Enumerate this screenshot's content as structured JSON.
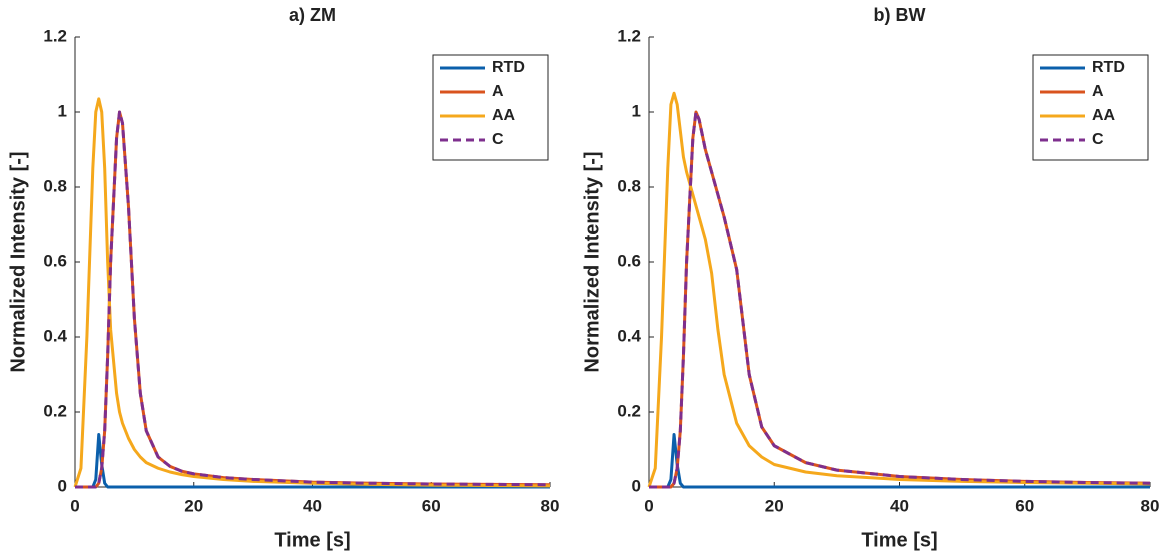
{
  "chart_data": [
    {
      "type": "line",
      "title": "a) ZM",
      "x_label": "Time [s]",
      "y_label": "Normalized Intensity [-]",
      "x": [
        0,
        1,
        2,
        3,
        3.5,
        4,
        4.5,
        5,
        5.5,
        6,
        7,
        7.5,
        8,
        9,
        10,
        11,
        12,
        14,
        16,
        18,
        20,
        25,
        30,
        40,
        50,
        60,
        70,
        80
      ],
      "series": [
        {
          "name": "RTD",
          "color": "#0b5fab",
          "line_style": "solid",
          "values": [
            0,
            0,
            0,
            0,
            0.02,
            0.14,
            0.06,
            0.01,
            0,
            0,
            0,
            0,
            0,
            0,
            0,
            0,
            0,
            0,
            0,
            0,
            0,
            0,
            0,
            0,
            0,
            0,
            0,
            0
          ]
        },
        {
          "name": "A",
          "color": "#d9531e",
          "line_style": "solid",
          "values": [
            0,
            0,
            0,
            0,
            0,
            0.01,
            0.05,
            0.15,
            0.35,
            0.6,
            0.93,
            1.0,
            0.97,
            0.75,
            0.45,
            0.25,
            0.15,
            0.08,
            0.055,
            0.042,
            0.035,
            0.025,
            0.02,
            0.013,
            0.01,
            0.008,
            0.007,
            0.006
          ]
        },
        {
          "name": "AA",
          "color": "#f5a81c",
          "line_style": "solid",
          "values": [
            0,
            0.05,
            0.4,
            0.85,
            1.0,
            1.035,
            1.0,
            0.85,
            0.6,
            0.42,
            0.25,
            0.2,
            0.17,
            0.13,
            0.1,
            0.08,
            0.065,
            0.05,
            0.04,
            0.033,
            0.028,
            0.02,
            0.015,
            0.01,
            0.007,
            0.005,
            0.004,
            0.003
          ]
        },
        {
          "name": "C",
          "color": "#7e2f8e",
          "line_style": "dashed",
          "values": [
            0,
            0,
            0,
            0,
            0,
            0.01,
            0.05,
            0.15,
            0.35,
            0.6,
            0.93,
            1.0,
            0.97,
            0.75,
            0.45,
            0.25,
            0.15,
            0.08,
            0.055,
            0.042,
            0.035,
            0.025,
            0.02,
            0.013,
            0.01,
            0.008,
            0.007,
            0.006
          ]
        }
      ],
      "xlim": [
        0,
        80
      ],
      "xticks": [
        0,
        20,
        40,
        60,
        80
      ],
      "ylim": [
        0,
        1.2
      ],
      "yticks": [
        0,
        0.2,
        0.4,
        0.6,
        0.8,
        1,
        1.2
      ],
      "legend": "upper right"
    },
    {
      "type": "line",
      "title": "b) BW",
      "x_label": "Time [s]",
      "y_label": "Normalized Intensity [-]",
      "x": [
        0,
        1,
        2,
        3,
        3.5,
        4,
        4.5,
        5,
        5.5,
        6,
        7,
        7.5,
        8,
        9,
        10,
        11,
        12,
        14,
        16,
        18,
        20,
        25,
        30,
        40,
        50,
        60,
        70,
        80
      ],
      "series": [
        {
          "name": "RTD",
          "color": "#0b5fab",
          "line_style": "solid",
          "values": [
            0,
            0,
            0,
            0,
            0.02,
            0.14,
            0.06,
            0.01,
            0,
            0,
            0,
            0,
            0,
            0,
            0,
            0,
            0,
            0,
            0,
            0,
            0,
            0,
            0,
            0,
            0,
            0,
            0,
            0
          ]
        },
        {
          "name": "A",
          "color": "#d9531e",
          "line_style": "solid",
          "values": [
            0,
            0,
            0,
            0,
            0,
            0.01,
            0.05,
            0.15,
            0.35,
            0.6,
            0.93,
            1.0,
            0.98,
            0.9,
            0.84,
            0.78,
            0.72,
            0.58,
            0.3,
            0.16,
            0.11,
            0.065,
            0.045,
            0.028,
            0.02,
            0.015,
            0.012,
            0.01
          ]
        },
        {
          "name": "AA",
          "color": "#f5a81c",
          "line_style": "solid",
          "values": [
            0,
            0.05,
            0.4,
            0.85,
            1.02,
            1.05,
            1.02,
            0.95,
            0.88,
            0.84,
            0.78,
            0.75,
            0.72,
            0.66,
            0.57,
            0.42,
            0.3,
            0.17,
            0.11,
            0.08,
            0.06,
            0.04,
            0.03,
            0.02,
            0.015,
            0.012,
            0.01,
            0.008
          ]
        },
        {
          "name": "C",
          "color": "#7e2f8e",
          "line_style": "dashed",
          "values": [
            0,
            0,
            0,
            0,
            0,
            0.01,
            0.05,
            0.15,
            0.35,
            0.6,
            0.93,
            1.0,
            0.98,
            0.9,
            0.84,
            0.78,
            0.72,
            0.58,
            0.3,
            0.16,
            0.11,
            0.065,
            0.045,
            0.028,
            0.02,
            0.015,
            0.012,
            0.01
          ]
        }
      ],
      "xlim": [
        0,
        80
      ],
      "xticks": [
        0,
        20,
        40,
        60,
        80
      ],
      "ylim": [
        0,
        1.2
      ],
      "yticks": [
        0,
        0.2,
        0.4,
        0.6,
        0.8,
        1,
        1.2
      ],
      "legend": "upper right"
    }
  ]
}
